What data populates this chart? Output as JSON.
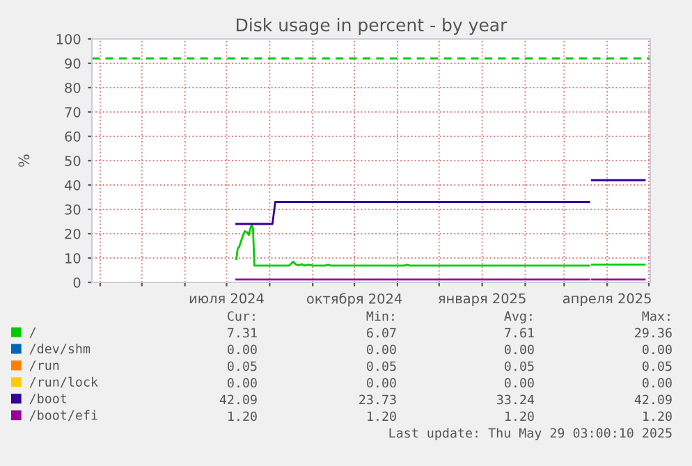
{
  "chart_data": {
    "type": "line",
    "title": "Disk usage in percent - by year",
    "ylabel": "%",
    "xlim": [
      "2024-03-26",
      "2025-05-02"
    ],
    "xticks": [
      {
        "value": "2024-04-01",
        "label": null
      },
      {
        "value": "2024-05-01",
        "label": null
      },
      {
        "value": "2024-06-01",
        "label": null
      },
      {
        "value": "2024-07-01",
        "label": "июля 2024"
      },
      {
        "value": "2024-08-01",
        "label": null
      },
      {
        "value": "2024-09-01",
        "label": null
      },
      {
        "value": "2024-10-01",
        "label": "октября 2024"
      },
      {
        "value": "2024-11-01",
        "label": null
      },
      {
        "value": "2024-12-01",
        "label": null
      },
      {
        "value": "2025-01-01",
        "label": "января 2025"
      },
      {
        "value": "2025-02-01",
        "label": null
      },
      {
        "value": "2025-03-01",
        "label": null
      },
      {
        "value": "2025-04-01",
        "label": "апреля 2025"
      },
      {
        "value": "2025-05-01",
        "label": null
      }
    ],
    "ylim": [
      0,
      100
    ],
    "yticks": [
      0,
      10,
      20,
      30,
      40,
      50,
      60,
      70,
      80,
      90,
      100
    ],
    "grid": true,
    "legend": "bottom",
    "marker": "none",
    "line_style": "solid",
    "series": [
      {
        "name": "/",
        "color": "#00cc00",
        "x": [
          "2024-07-08",
          "2024-07-09",
          "2024-07-10",
          "2024-07-12",
          "2024-07-14",
          "2024-07-16",
          "2024-07-17",
          "2024-07-18",
          "2024-07-19",
          "2024-07-20",
          "2024-07-21",
          "2024-08-15",
          "2024-08-18",
          "2024-08-20",
          "2024-08-22",
          "2024-08-24",
          "2024-08-26",
          "2024-08-29",
          "2024-09-01",
          "2024-09-10",
          "2024-09-12",
          "2024-09-14",
          "2024-11-06",
          "2024-11-08",
          "2024-11-10",
          "2025-03-19",
          "2025-03-20",
          "2025-03-21",
          "2025-04-28"
        ],
        "values": [
          9.5,
          14,
          14.5,
          18,
          21,
          20.5,
          19.5,
          22,
          23.5,
          22,
          6.9,
          6.9,
          8.5,
          7.3,
          7,
          7.5,
          6.9,
          7.3,
          6.9,
          6.9,
          7.3,
          6.9,
          6.9,
          7.3,
          6.9,
          6.9,
          null,
          7.3,
          7.3
        ]
      },
      {
        "name": "/dev/shm",
        "color": "#0066b3"
      },
      {
        "name": "/run",
        "color": "#ff8000"
      },
      {
        "name": "/run/lock",
        "color": "#ffcc00"
      },
      {
        "name": "/boot",
        "color": "#330099",
        "x": [
          "2024-07-08",
          "2024-08-03",
          "2024-08-05",
          "2025-03-19",
          "2025-03-20",
          "2025-03-21",
          "2025-04-28"
        ],
        "values": [
          24,
          24,
          33,
          33,
          null,
          42,
          42
        ]
      },
      {
        "name": "/boot/efi",
        "color": "#990099",
        "x": [
          "2024-07-08",
          "2025-03-19",
          "2025-03-20",
          "2025-03-21",
          "2025-04-28"
        ],
        "values": [
          1.2,
          1.2,
          null,
          1.2,
          1.2
        ]
      }
    ],
    "ref_lines": [
      {
        "axis": "y",
        "value": 92,
        "label": null,
        "color": "#00cc00",
        "line_style": "dashed"
      }
    ],
    "annotations": [
      "Cur:",
      "Min:",
      "Avg:",
      "Max:",
      "7.31",
      "6.07",
      "7.61",
      "29.36",
      "0.00",
      "0.00",
      "0.00",
      "0.00",
      "0.05",
      "0.05",
      "0.05",
      "0.05",
      "0.00",
      "0.00",
      "0.00",
      "0.00",
      "42.09",
      "23.73",
      "33.24",
      "42.09",
      "1.20",
      "1.20",
      "1.20",
      "1.20",
      "Last update: Thu May 29 03:00:10 2025"
    ]
  }
}
